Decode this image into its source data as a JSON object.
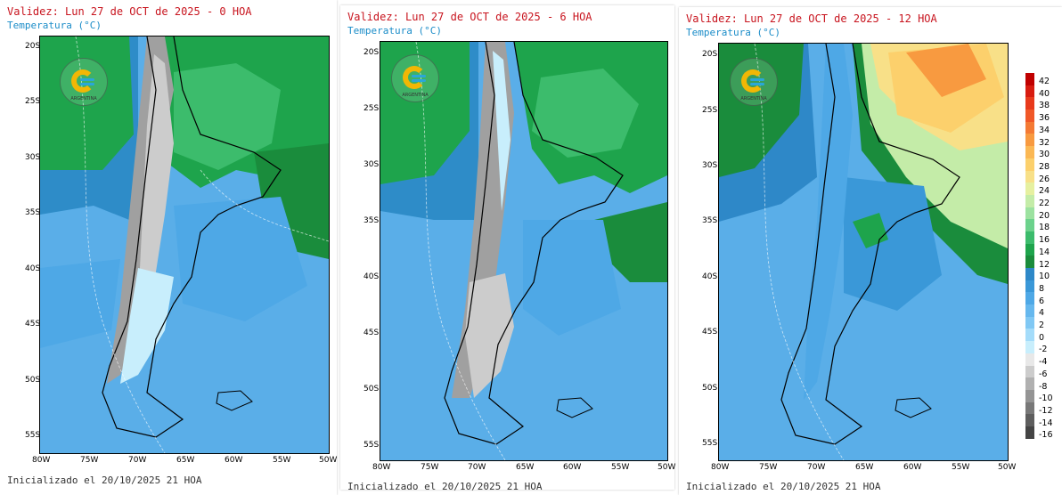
{
  "panels": [
    {
      "title": "Validez: Lun 27 de OCT de 2025 - 0 HOA",
      "subtitle": "Temperatura (°C)",
      "footer": "Inicializado el 20/10/2025 21 HOA"
    },
    {
      "title": "Validez: Lun 27 de OCT de 2025 - 6 HOA",
      "subtitle": "Temperatura (°C)",
      "footer": "Inicializado el 20/10/2025 21 HOA"
    },
    {
      "title": "Validez: Lun 27 de OCT de 2025 - 12 HOA",
      "subtitle": "Temperatura (°C)",
      "footer": "Inicializado el 20/10/2025 21 HOA"
    }
  ],
  "lat_labels": [
    "20S",
    "25S",
    "30S",
    "35S",
    "40S",
    "45S",
    "50S",
    "55S"
  ],
  "lon_labels": [
    "80W",
    "75W",
    "70W",
    "65W",
    "60W",
    "55W",
    "50W"
  ],
  "logo_text": "ARGENTINA",
  "colorbar": {
    "ticks": [
      "42",
      "40",
      "38",
      "36",
      "34",
      "32",
      "30",
      "28",
      "26",
      "24",
      "22",
      "20",
      "18",
      "16",
      "14",
      "12",
      "10",
      "8",
      "6",
      "4",
      "2",
      "0",
      "-2",
      "-4",
      "-6",
      "-8",
      "-10",
      "-12",
      "-14",
      "-16"
    ],
    "colors": [
      "#c00000",
      "#d81c10",
      "#e83a1c",
      "#f05828",
      "#f47a34",
      "#f89a40",
      "#fbb854",
      "#fcd06c",
      "#f8e088",
      "#e6f0a0",
      "#c4eca8",
      "#9ce2a0",
      "#6cd28c",
      "#3cbc6c",
      "#1ea44c",
      "#1a8c3c",
      "#2e88c8",
      "#3a98d8",
      "#4ea8e6",
      "#66b8ee",
      "#80c8f4",
      "#a4dcfa",
      "#c8eefc",
      "#e8e8e8",
      "#cccccc",
      "#b0b0b0",
      "#949494",
      "#787878",
      "#5e5e5e",
      "#444444"
    ]
  }
}
